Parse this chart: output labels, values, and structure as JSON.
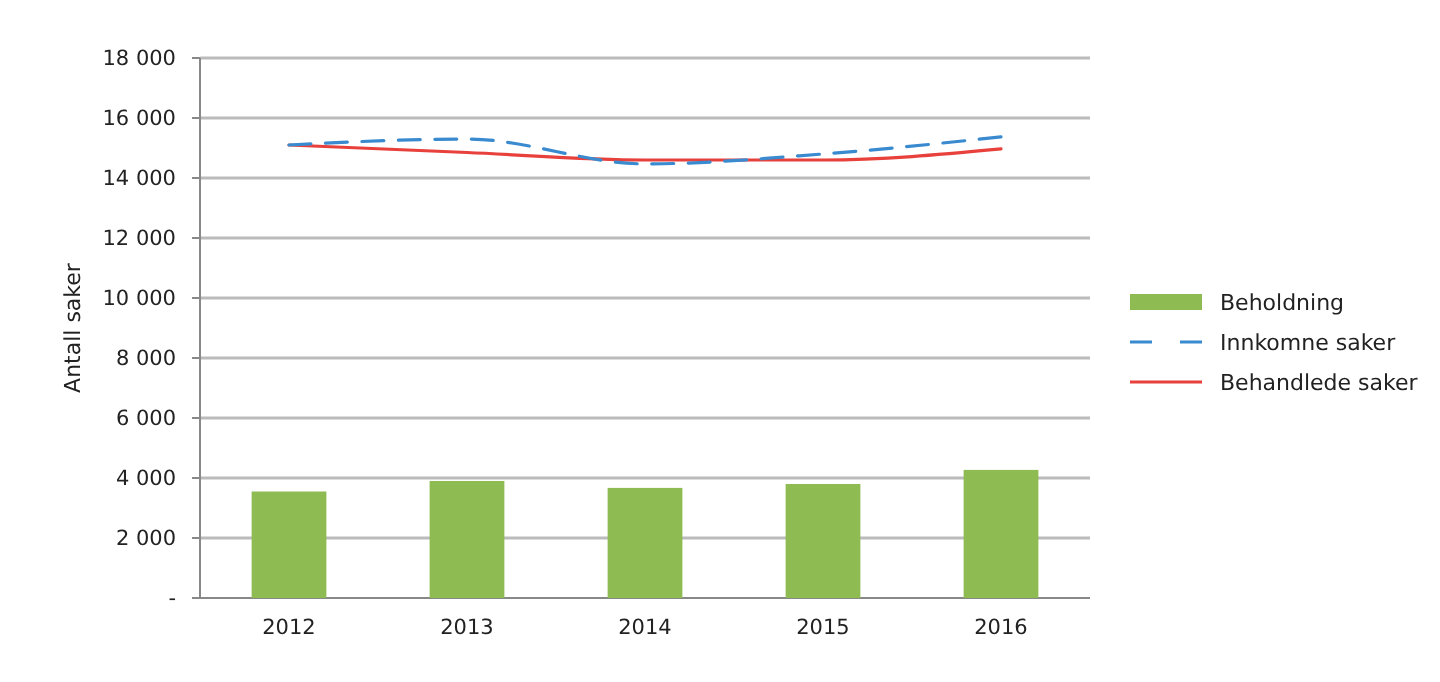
{
  "chart_data": {
    "type": "bar",
    "ylabel": "Antall saker",
    "categories": [
      "2012",
      "2013",
      "2014",
      "2015",
      "2016"
    ],
    "series": [
      {
        "name": "Beholdning",
        "color": "#8fbc52",
        "values": [
          3550,
          3900,
          3670,
          3800,
          4270
        ]
      },
      {
        "name": "Innkomne saker",
        "type": "line",
        "color": "#3a8ad0",
        "line_style": "dashed",
        "values": [
          15100,
          15300,
          14470,
          14800,
          15370
        ]
      },
      {
        "name": "Behandlede saker",
        "type": "line",
        "color": "#e8413c",
        "line_style": "solid",
        "values": [
          15100,
          14850,
          14600,
          14600,
          14970
        ]
      }
    ],
    "ylim": [
      0,
      18000
    ],
    "yticks": [
      {
        "value": 0,
        "label": "-"
      },
      {
        "value": 2000,
        "label": "2 000"
      },
      {
        "value": 4000,
        "label": "4 000"
      },
      {
        "value": 6000,
        "label": "6 000"
      },
      {
        "value": 8000,
        "label": "8 000"
      },
      {
        "value": 10000,
        "label": "10 000"
      },
      {
        "value": 12000,
        "label": "12 000"
      },
      {
        "value": 14000,
        "label": "14 000"
      },
      {
        "value": 16000,
        "label": "16 000"
      },
      {
        "value": 18000,
        "label": "18 000"
      }
    ],
    "grid": "y",
    "legend": "right"
  }
}
